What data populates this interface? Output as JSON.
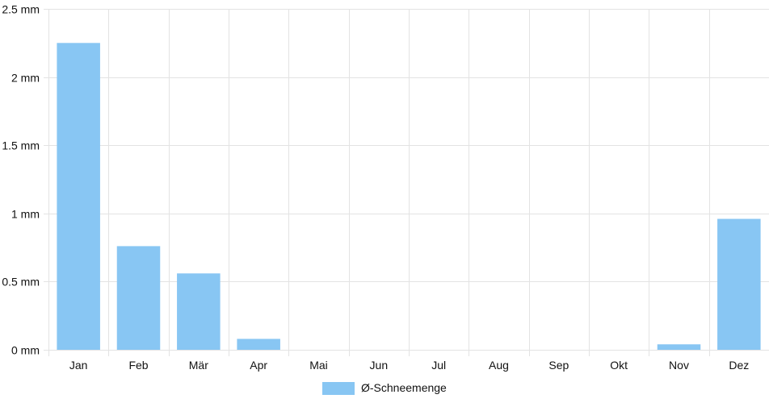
{
  "chart_data": {
    "type": "bar",
    "categories": [
      "Jan",
      "Feb",
      "Mär",
      "Apr",
      "Mai",
      "Jun",
      "Jul",
      "Aug",
      "Sep",
      "Okt",
      "Nov",
      "Dez"
    ],
    "series": [
      {
        "name": "Ø-Schneemenge",
        "values": [
          2.25,
          0.76,
          0.56,
          0.08,
          0,
          0,
          0,
          0,
          0,
          0,
          0.04,
          0.96
        ],
        "color": "#88c6f3"
      }
    ],
    "ylim": [
      0,
      2.5
    ],
    "y_ticks": [
      "0 mm",
      "0.5 mm",
      "1 mm",
      "1.5 mm",
      "2 mm",
      "2.5 mm"
    ],
    "xlabel": "",
    "ylabel": "",
    "grid": true,
    "legend_position": "bottom-center"
  },
  "colors": {
    "bar": "#88c6f3",
    "grid": "#e3e3e3",
    "axis_text": "#111111"
  }
}
